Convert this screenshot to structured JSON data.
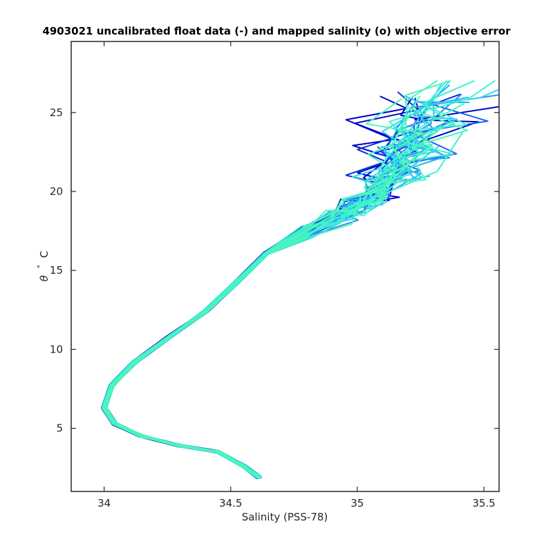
{
  "chart_data": {
    "type": "line",
    "title": "4903021 uncalibrated float data (-) and mapped salinity (o) with objective error",
    "xlabel": "Salinity (PSS-78)",
    "ylabel_symbol": "θ",
    "ylabel_degree": "°",
    "ylabel_unit": "C",
    "xlim": [
      33.87,
      35.56
    ],
    "ylim": [
      1.0,
      29.5
    ],
    "x_ticks": [
      34,
      34.5,
      35,
      35.5
    ],
    "x_tick_labels": [
      "34",
      "34.5",
      "35",
      "35.5"
    ],
    "y_ticks": [
      5,
      10,
      15,
      20,
      25
    ],
    "y_tick_labels": [
      "5",
      "10",
      "15",
      "20",
      "25"
    ],
    "grid": false,
    "legend": "none",
    "colormap": [
      "#0000cc",
      "#0a2fe0",
      "#1f63f0",
      "#2a8df5",
      "#20b5f5",
      "#30d8ea",
      "#40f0d0",
      "#48f7b8"
    ],
    "profile_count": 48,
    "base_curve": [
      {
        "s": 34.61,
        "t": 1.9
      },
      {
        "s": 34.55,
        "t": 2.6
      },
      {
        "s": 34.45,
        "t": 3.5
      },
      {
        "s": 34.3,
        "t": 3.9
      },
      {
        "s": 34.15,
        "t": 4.5
      },
      {
        "s": 34.04,
        "t": 5.3
      },
      {
        "s": 34.0,
        "t": 6.3
      },
      {
        "s": 34.03,
        "t": 7.7
      },
      {
        "s": 34.12,
        "t": 9.2
      },
      {
        "s": 34.25,
        "t": 10.7
      },
      {
        "s": 34.4,
        "t": 12.4
      },
      {
        "s": 34.52,
        "t": 14.2
      },
      {
        "s": 34.64,
        "t": 16.1
      },
      {
        "s": 34.8,
        "t": 17.5
      },
      {
        "s": 34.92,
        "t": 18.4
      },
      {
        "s": 35.05,
        "t": 19.6
      },
      {
        "s": 35.12,
        "t": 21.0
      },
      {
        "s": 35.18,
        "t": 22.6
      },
      {
        "s": 35.22,
        "t": 24.2
      },
      {
        "s": 35.25,
        "t": 26.0
      }
    ]
  }
}
